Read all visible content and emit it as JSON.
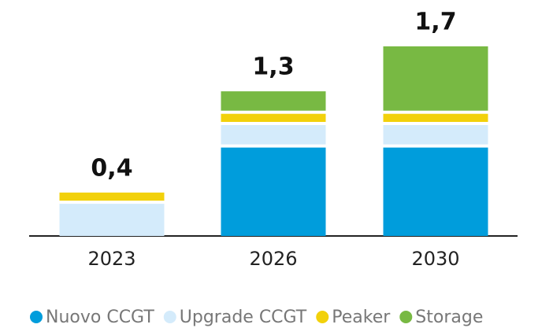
{
  "chart_data": {
    "type": "stacked_bar",
    "categories": [
      "2023",
      "2026",
      "2030"
    ],
    "series": [
      {
        "name": "Nuovo CCGT",
        "color": "#009ddc",
        "values": [
          0,
          0.8,
          0.8
        ]
      },
      {
        "name": "Upgrade CCGT",
        "color": "#d4ebfb",
        "values": [
          0.3,
          0.2,
          0.2
        ]
      },
      {
        "name": "Peaker",
        "color": "#f2d10b",
        "values": [
          0.1,
          0.1,
          0.1
        ]
      },
      {
        "name": "Storage",
        "color": "#78b943",
        "values": [
          0,
          0.2,
          0.6
        ]
      }
    ],
    "totals": [
      0.4,
      1.3,
      1.7
    ],
    "value_labels": [
      "0,4",
      "1,3",
      "1,7"
    ],
    "ylim": [
      0,
      2
    ],
    "legend": "bottom"
  }
}
